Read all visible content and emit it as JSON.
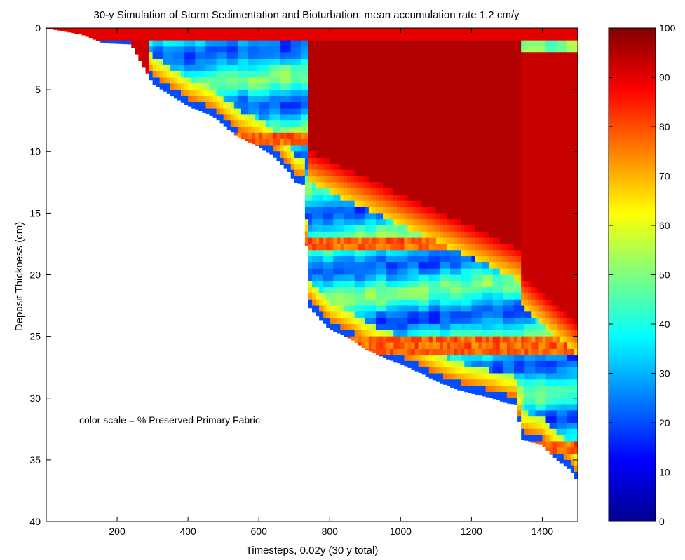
{
  "chart_data": {
    "type": "heatmap",
    "title": "30-y Simulation of Storm Sedimentation and Bioturbation, mean accumulation rate 1.2 cm/y",
    "xlabel": "Timesteps, 0.02y (30 y total)",
    "ylabel": "Deposit Thickness (cm)",
    "annotation": "color scale = % Preserved Primary Fabric",
    "xlim": [
      0,
      1500
    ],
    "ylim": [
      40,
      0
    ],
    "x_ticks": [
      200,
      400,
      600,
      800,
      1000,
      1200,
      1400
    ],
    "y_ticks": [
      0,
      5,
      10,
      15,
      20,
      25,
      30,
      35,
      40
    ],
    "colorbar": {
      "label": "% Preserved Primary Fabric",
      "range": [
        0,
        100
      ],
      "ticks": [
        0,
        10,
        20,
        30,
        40,
        50,
        60,
        70,
        80,
        90,
        100
      ],
      "colormap": "jet"
    },
    "deposit_base": {
      "x": [
        0,
        100,
        160,
        240,
        300,
        340,
        400,
        460,
        470,
        540,
        600,
        640,
        690,
        700,
        730,
        740,
        760,
        800,
        860,
        900,
        960,
        1000,
        1060,
        1100,
        1160,
        1200,
        1260,
        1300,
        1330,
        1340,
        1400,
        1430,
        1460,
        1480,
        1500
      ],
      "y": [
        0,
        0.5,
        1.2,
        1.3,
        4.5,
        5.2,
        6.3,
        7.0,
        7.1,
        8.8,
        9.6,
        10.3,
        11.8,
        12.5,
        12.7,
        22.5,
        23.2,
        24.4,
        25.2,
        26.0,
        26.8,
        27.2,
        28.0,
        28.6,
        29.3,
        29.6,
        30.0,
        30.4,
        30.5,
        33.3,
        33.8,
        34.7,
        35.4,
        35.8,
        36.8
      ]
    },
    "preserved_cores": [
      {
        "x_range": [
          240,
          290
        ],
        "depth_range": [
          0.5,
          3.5
        ],
        "value": 92
      },
      {
        "x_range": [
          740,
          1340
        ],
        "depth_top": 0.5,
        "depth_bottom_start": 10,
        "depth_bottom_end": 18,
        "value": 95
      },
      {
        "x_range": [
          1340,
          1500
        ],
        "depth_top": 2,
        "depth_bottom_start": 20,
        "depth_bottom_end": 24,
        "value": 93
      }
    ],
    "background_range": [
      20,
      50
    ]
  }
}
